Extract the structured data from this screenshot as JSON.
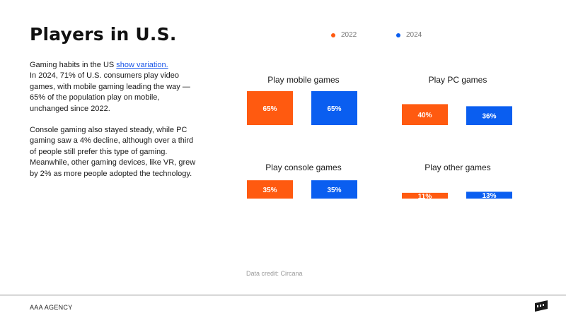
{
  "title": "Players in U.S.",
  "intro": {
    "lead": "Gaming habits in the US ",
    "link": "show variation.",
    "rest": "In 2024, 71% of U.S. consumers play video games, with mobile gaming leading the way — 65% of the population play on mobile, unchanged since 2022."
  },
  "paragraph2": "Console gaming also stayed steady, while PC gaming saw a 4% decline, although over a third of people still prefer this type of gaming. Meanwhile, other gaming devices, like VR, grew by 2% as more people adopted the technology.",
  "credit": "Data credit: Circana",
  "footer": "AAA AGENCY",
  "colors": {
    "s2022": "#ff5a10",
    "s2024": "#0a5ef0"
  },
  "chart_data": {
    "type": "bar",
    "legend": [
      "2022",
      "2024"
    ],
    "panels": [
      {
        "title": "Play mobile games",
        "values": [
          65,
          65
        ],
        "labels": [
          "65%",
          "65%"
        ]
      },
      {
        "title": "Play PC games",
        "values": [
          40,
          36
        ],
        "labels": [
          "40%",
          "36%"
        ]
      },
      {
        "title": "Play console games",
        "values": [
          35,
          35
        ],
        "labels": [
          "35%",
          "35%"
        ]
      },
      {
        "title": "Play other games",
        "values": [
          11,
          13
        ],
        "labels": [
          "11%",
          "13%"
        ]
      }
    ],
    "ylim": [
      0,
      100
    ],
    "legend_position": "top",
    "grid": false
  }
}
